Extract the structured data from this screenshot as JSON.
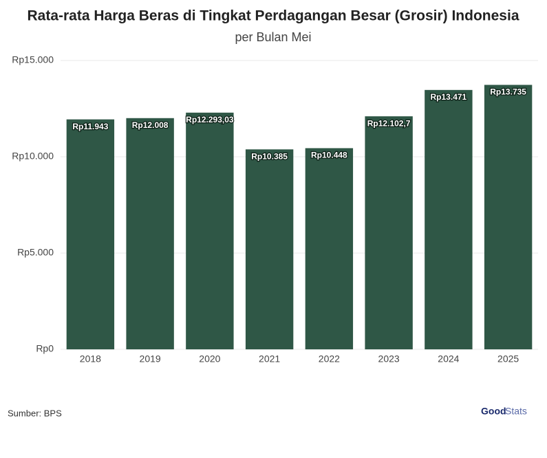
{
  "chart_data": {
    "type": "bar",
    "title": "Rata-rata Harga Beras di Tingkat Perdagangan Besar (Grosir) Indonesia",
    "subtitle": "per Bulan Mei",
    "categories": [
      "2018",
      "2019",
      "2020",
      "2021",
      "2022",
      "2023",
      "2024",
      "2025"
    ],
    "values": [
      11943,
      12008,
      12293.03,
      10385,
      10448,
      12102.7,
      13471,
      13735
    ],
    "value_labels": [
      "Rp11.943",
      "Rp12.008",
      "Rp12.293,03",
      "Rp10.385",
      "Rp10.448",
      "Rp12.102,7",
      "Rp13.471",
      "Rp13.735"
    ],
    "color": "#2f5746",
    "ylim": [
      0,
      15000
    ],
    "yticks": [
      {
        "value": 0,
        "label": "Rp0"
      },
      {
        "value": 5000,
        "label": "Rp5.000"
      },
      {
        "value": 10000,
        "label": "Rp10.000"
      },
      {
        "value": 15000,
        "label": "Rp15.000"
      }
    ],
    "grid": true,
    "source": "Sumber: BPS",
    "logo": [
      "Good",
      "Stats"
    ]
  }
}
